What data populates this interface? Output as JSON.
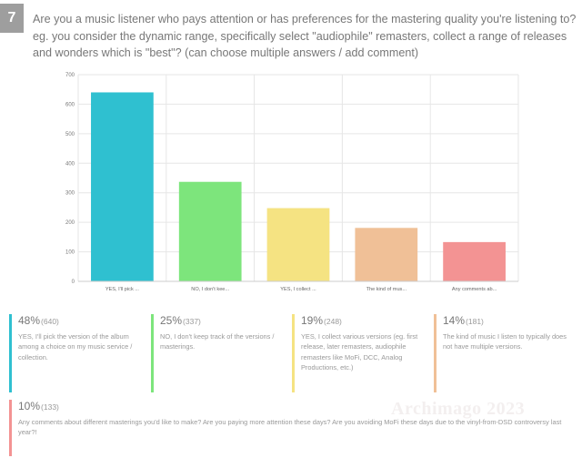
{
  "question": {
    "number": "7",
    "text": "Are you a music listener who pays attention or has preferences for the mastering quality you're listening to? eg. you consider the dynamic range, specifically select \"audiophile\" remasters, collect a range of releases and wonders which is \"best\"? (can choose multiple answers / add comment)"
  },
  "chart_data": {
    "type": "bar",
    "categories": [
      "YES, I'll pick ...",
      "NO, I don't kee...",
      "YES, I collect ...",
      "The kind of mus...",
      "Any comments ab..."
    ],
    "values": [
      640,
      337,
      248,
      181,
      133
    ],
    "colors": [
      "#2fc0d0",
      "#7de57c",
      "#f5e382",
      "#f0c097",
      "#f39393"
    ],
    "ylim": [
      0,
      700
    ],
    "yticks": [
      0,
      100,
      200,
      300,
      400,
      500,
      600,
      700
    ],
    "grid": true
  },
  "answers": [
    {
      "pct": "48%",
      "count": "(640)",
      "text": "YES, I'll pick the version of the album among a choice on my music service / collection.",
      "color": "#2fc0d0"
    },
    {
      "pct": "25%",
      "count": "(337)",
      "text": "NO, I don't keep track of the versions / masterings.",
      "color": "#7de57c"
    },
    {
      "pct": "19%",
      "count": "(248)",
      "text": "YES, I collect various versions (eg. first release, later remasters, audiophile remasters like MoFi, DCC, Analog Productions, etc.)",
      "color": "#f5e382"
    },
    {
      "pct": "14%",
      "count": "(181)",
      "text": "The kind of music I listen to typically does not have multiple versions.",
      "color": "#f0c097"
    },
    {
      "pct": "10%",
      "count": "(133)",
      "text": "Any comments about different masterings you'd like to make? Are you paying more attention these days? Are you avoiding MoFi these days due to the vinyl-from-DSD controversy last year?!",
      "color": "#f39393"
    }
  ],
  "watermark": "Archimago 2023"
}
